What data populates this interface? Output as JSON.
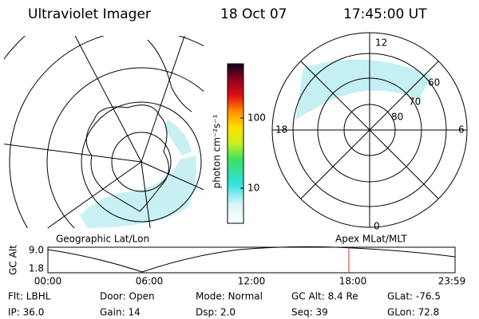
{
  "header": {
    "title": "Ultraviolet Imager",
    "date": "18 Oct 07",
    "time": "17:45:00 UT"
  },
  "colorbar": {
    "label": "photon cm⁻²s⁻¹",
    "ticks": [
      "100",
      "10"
    ]
  },
  "polar_plot": {
    "mlt_labels": [
      "12",
      "6",
      "0",
      "18"
    ],
    "lat_labels": [
      "60",
      "70",
      "80"
    ]
  },
  "panel_labels": {
    "left": "Geographic Lat/Lon",
    "right": "Apex MLat/MLT"
  },
  "altitude_plot": {
    "axis_label": "GC Alt",
    "y_labels": [
      "9.0",
      "1.8"
    ],
    "x_labels": [
      "00:00",
      "06:00",
      "12:00",
      "18:00",
      "23:59"
    ]
  },
  "info": {
    "rows": [
      [
        "Flt: LBHL",
        "Door: Open",
        "Mode: Normal",
        "GC Alt: 8.4 Re",
        "GLat: -76.5"
      ],
      [
        "IP: 36.0",
        "Gain: 14",
        "Dsp:   2.0",
        "Seq: 39",
        "GLon: 72.8"
      ]
    ]
  }
}
